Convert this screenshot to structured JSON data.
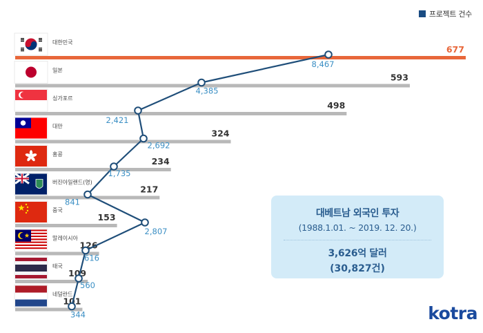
{
  "legend": {
    "label": "프로젝트 건수",
    "color": "#1a4c82"
  },
  "info_box": {
    "title": "대베트남 외국인 투자",
    "period": "(1988.1.01. ~ 2019. 12. 20.)",
    "amount": "3,626억 달러",
    "count": "(30,827건)"
  },
  "logo": "kotra",
  "colors": {
    "highlight_bar": "#e8673a",
    "bar": "#b8b8b8",
    "line": "#1f4e79",
    "marker_fill": "#ffffff",
    "project_label": "#3b8fc4",
    "highlight_label": "#e8673a",
    "value_label": "#333333"
  },
  "chart_data": {
    "type": "bar",
    "orientation": "horizontal",
    "categories": [
      "대한민국",
      "일본",
      "싱가포르",
      "대만",
      "홍콩",
      "버진아일랜드(영)",
      "중국",
      "말레이시아",
      "태국",
      "네덜란드"
    ],
    "flag_icons": [
      "korea-flag",
      "japan-flag",
      "singapore-flag",
      "taiwan-flag",
      "hongkong-flag",
      "bvi-flag",
      "china-flag",
      "malaysia-flag",
      "thailand-flag",
      "netherlands-flag"
    ],
    "series": [
      {
        "values": [
          677,
          593,
          498,
          324,
          234,
          217,
          153,
          126,
          109,
          101
        ],
        "labels": [
          "677",
          "593",
          "498",
          "324",
          "234",
          "217",
          "153",
          "126",
          "109",
          "101"
        ]
      },
      {
        "name": "프로젝트 건수",
        "values": [
          8467,
          4385,
          2421,
          2692,
          1735,
          841,
          2807,
          616,
          560,
          344
        ],
        "labels": [
          "8,467",
          "4,385",
          "2,421",
          "2,692",
          "1,735",
          "841",
          "2,807",
          "616",
          "560",
          "344"
        ]
      }
    ]
  }
}
